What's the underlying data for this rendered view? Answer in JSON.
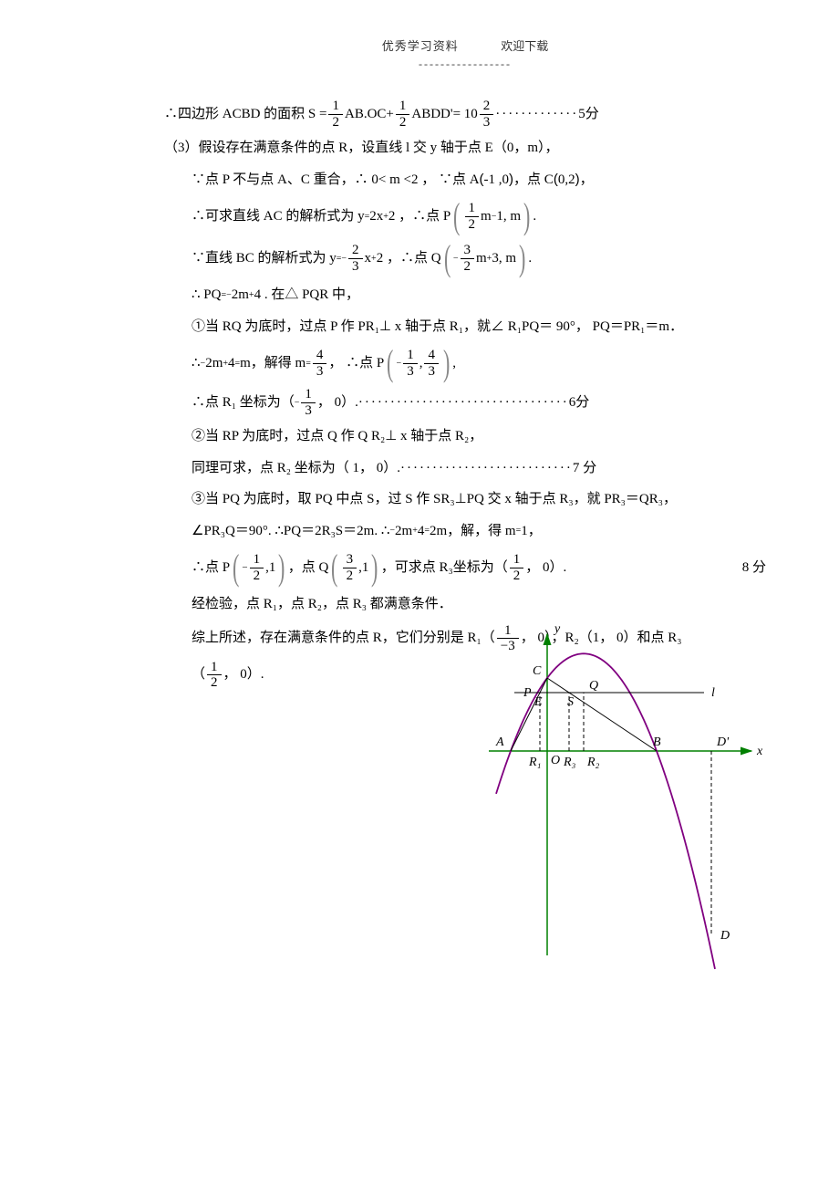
{
  "header": {
    "left": "优秀学习资料",
    "right": "欢迎下载",
    "dash": "-----------------"
  },
  "l1": {
    "pre": "∴四边形  ACBD 的面积  S =",
    "f1n": "1",
    "f1d": "2",
    "mid1": "AB.OC+",
    "f2n": "1",
    "f2d": "2",
    "mid2": " ABDD'= 10",
    "f3n": "2",
    "f3d": "3",
    "dots": "  ·············",
    "score": "5分"
  },
  "l2": "（3）假设存在满意条件的点     R，设直线  l 交 y 轴于点  E（0，m），",
  "l3": {
    "a": "∵点 P 不与点  A、C 重合，∴ 0< m <2 ， ∵点  A",
    "b": "-1 ,0",
    "c": "，点 C",
    "d": "0,2",
    "e": "，"
  },
  "l4": {
    "a": "∴可求直线  AC 的解析式为   y ",
    "eq": "=",
    "b": " 2x ",
    "plus": "+",
    "c": "2 ，∴点  P",
    "pn1": "1",
    "pd1": "2",
    "pm": "m ",
    "minus": "−",
    "one": "1,  m",
    "dot": "."
  },
  "l5": {
    "a": "∵直线  BC 的解析式为   y ",
    "eq": "=",
    "neg": "−",
    "fn": "2",
    "fd": "3",
    "b": " x ",
    "plus": "+",
    "c": "2 ，∴点  Q",
    "qn": "3",
    "qd": "2",
    "qm": "m ",
    "qplus": "+",
    "q3": "3,  m",
    "dot2": "."
  },
  "l6": {
    "a": "∴ PQ ",
    "eq": "=",
    "neg": "−",
    "b": "2m ",
    "plus": "+",
    "c": "4 .  在△ PQR 中，"
  },
  "l7": "①当 RQ 为底时，过点   P 作 PR₁⊥ x 轴于点  R₁，就∠ R₁PQ＝ 90°， PQ＝PR₁＝m．",
  "l8": {
    "a": "∴ ",
    "neg": "−",
    "b": "2m ",
    "plus": "+",
    "c": "4 ",
    "eq": "=",
    "d": " m，解得  m ",
    "eq2": "=",
    "fn": "4",
    "fd": "3",
    "e": "， ∴点  P",
    "pn1": "1",
    "pd1": "3",
    "comma": ",",
    "pn2": "4",
    "pd2": "3",
    "f": ","
  },
  "l9": {
    "a": "∴点  R₁ 坐标为（ ",
    "neg": "−",
    "fn": "1",
    "fd": "3",
    "b": "， 0）.  ",
    "dots": "·································",
    "score": "6分"
  },
  "l10": "②当 RP 为底时，过点   Q 作 Q R₂⊥ x 轴于点  R₂，",
  "l11": {
    "a": "同理可求，点   R₂ 坐标为（ 1， 0）.  ",
    "dots": "···························",
    "score": "7 分"
  },
  "l12": "③当 PQ 为底时，取   PQ 中点  S，过 S 作 SR₃⊥PQ 交 x 轴于点  R₃，就 PR₃＝QR₃，",
  "l13": {
    "a": "∠PR₃Q＝90°. ∴PQ＝2R₃S＝2m.  ∴  ",
    "neg": "−",
    "b": "2m ",
    "plus": "+",
    "c": "4 ",
    "eq": "=",
    "d": " 2m，解，得  m ",
    "eq2": "=",
    "e": " 1，"
  },
  "l14": {
    "a": "∴点  P",
    "pn": "1",
    "pd": "2",
    "pm": ",1",
    "b": "，点 Q",
    "qn": "3",
    "qd": "2",
    "qm": ",1",
    "c": "，可求点  R₃坐标为（ ",
    "rn": "1",
    "rd": "2",
    "d": "， 0）.",
    "score": "8 分"
  },
  "l15": "经检验，点   R₁，点 R₂，点  R₃ 都满意条件．",
  "l16": {
    "a": "综上所述，存在满意条件的点     R，它们分别是   R₁（ ",
    "fn": "1",
    "fd": "−3",
    "b": "， 0），R₂（1， 0）和点  R₃"
  },
  "l17": {
    "a": "（",
    "fn": "1",
    "fd": "2",
    "b": "， 0）."
  },
  "chart": {
    "axis_color": "#008000",
    "curve_color": "#800080",
    "line_color": "#000000",
    "dash_color": "#000000",
    "labels": {
      "y": "y",
      "x": "x",
      "C": "C",
      "P": "P",
      "Q": "Q",
      "E": "E",
      "S": "S",
      "l": "l",
      "A": "A",
      "B": "B",
      "Dp": "D'",
      "O": "O",
      "R1": "R₁",
      "R2": "R₂",
      "R3": "R₃",
      "D": "D"
    }
  }
}
